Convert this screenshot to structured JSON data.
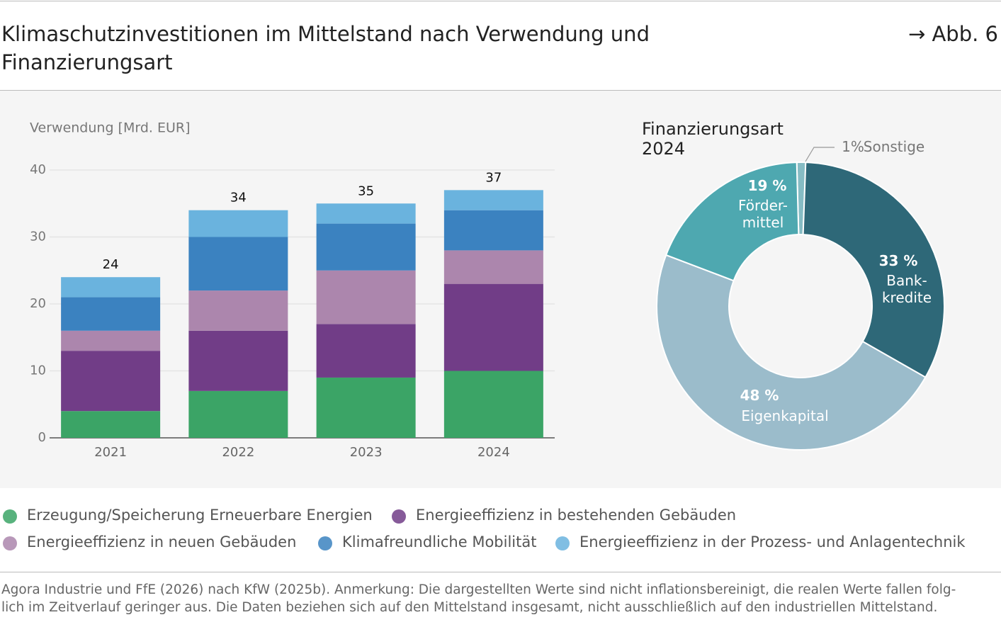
{
  "header": {
    "title": "Klimaschutzinvestitionen im Mittelstand nach Verwendung und Finanzierungsart",
    "figure_ref": "→ Abb. 6"
  },
  "chart_data": [
    {
      "type": "bar",
      "stacked": true,
      "y_label": "Verwendung [Mrd. EUR]",
      "categories": [
        "2021",
        "2022",
        "2023",
        "2024"
      ],
      "series": [
        {
          "name": "Erzeugung/Speicherung Erneuerbare Energien",
          "color": "#3ba466",
          "values": [
            4,
            7,
            9,
            10
          ]
        },
        {
          "name": "Energieeffizienz in bestehenden Gebäuden",
          "color": "#713d87",
          "values": [
            9,
            9,
            8,
            13
          ]
        },
        {
          "name": "Energieeffizienz in neuen Gebäuden",
          "color": "#ac86ad",
          "values": [
            3,
            6,
            8,
            5
          ]
        },
        {
          "name": "Klimafreundliche Mobilität",
          "color": "#3b82c0",
          "values": [
            5,
            8,
            7,
            6
          ]
        },
        {
          "name": "Energieeffizienz in der Prozess- und Anlagentechnik",
          "color": "#6ab3de",
          "values": [
            3,
            4,
            3,
            3
          ]
        }
      ],
      "totals": [
        24,
        34,
        35,
        37
      ],
      "ylim": [
        0,
        40
      ],
      "yticks": [
        0,
        10,
        20,
        30,
        40
      ],
      "grid": true
    },
    {
      "type": "donut",
      "title": "Finanzierungsart\n2024",
      "categories": [
        "Sonstige",
        "Bank-\nkredite",
        "Eigenkapital",
        "Förder-\nmittel"
      ],
      "values": [
        1,
        33,
        48,
        19
      ],
      "value_labels": [
        "1%",
        "33 %",
        "48 %",
        "19 %"
      ],
      "colors": [
        "#86bcc4",
        "#2e6878",
        "#9bbccb",
        "#4ea8b0"
      ]
    }
  ],
  "source": "Agora Industrie und FfE (2026) nach KfW (2025b). Anmerkung: Die dargestellten Werte sind nicht inflationsbereinigt, die realen Werte fallen folg-\nlich im Zeitverlauf geringer aus. Die Daten beziehen sich auf den Mittelstand insgesamt, nicht ausschließlich auf den industriellen Mittelstand."
}
